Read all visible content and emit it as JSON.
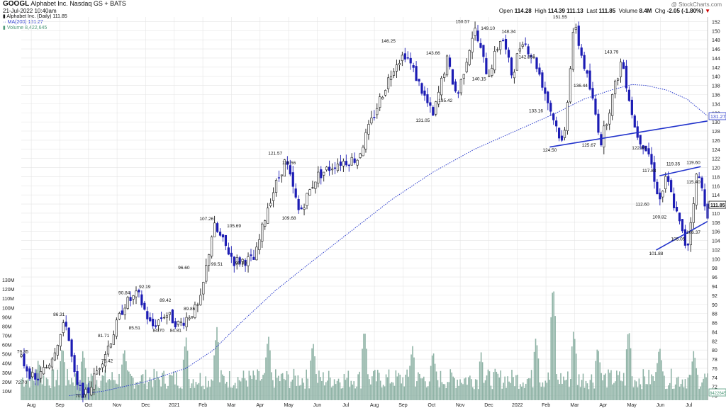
{
  "header": {
    "ticker": "GOOGL",
    "company": "Alphabet Inc.",
    "exchange": "Nasdaq GS + BATS",
    "date": "21-Jul-2022 10:40am",
    "watermark": "@ StockCharts.com",
    "open_label": "Open",
    "open": "114.28",
    "high_label": "High",
    "high": "114.39",
    "low": "111.13",
    "last_label": "Last",
    "last": "111.85",
    "volume_label": "Volume",
    "volume": "8.4M",
    "chg_label": "Chg",
    "chg": "-2.05 (-1.80%)"
  },
  "legend": [
    {
      "text": "Alphabet Inc. (Daily) 111.85",
      "color": "#111111"
    },
    {
      "text": "MA(200) 131.27",
      "color": "#2b3ccc"
    },
    {
      "text": "Volume 8,422,645",
      "color": "#4f9a7a"
    }
  ],
  "colors": {
    "up": "#1a1a1a",
    "down": "#1c1cb4",
    "ma": "#2b3ccc",
    "trend": "#2233cc",
    "volume": "#8fb3a6",
    "grid": "#e5e5e5"
  },
  "chart_data": {
    "type": "candlestick",
    "x_labels": [
      "Aug",
      "Sep",
      "Oct",
      "Nov",
      "Dec",
      "2021",
      "Feb",
      "Mar",
      "Apr",
      "May",
      "Jun",
      "Jul",
      "Aug",
      "Sep",
      "Oct",
      "Nov",
      "Dec",
      "2022",
      "Feb",
      "Mar",
      "Apr",
      "May",
      "Jun",
      "Jul"
    ],
    "y_price_ticks": [
      70,
      72,
      74,
      76,
      78,
      80,
      82,
      84,
      86,
      88,
      90,
      92,
      94,
      96,
      98,
      100,
      102,
      104,
      106,
      108,
      110,
      112,
      114,
      116,
      118,
      120,
      122,
      124,
      126,
      128,
      130,
      132,
      134,
      136,
      138,
      140,
      142,
      144,
      146,
      148,
      150,
      152
    ],
    "y_volume_ticks": [
      "10M",
      "20M",
      "30M",
      "40M",
      "50M",
      "60M",
      "70M",
      "80M",
      "90M",
      "100M",
      "110M",
      "120M",
      "130M"
    ],
    "ylim_price": [
      69,
      153
    ],
    "last_price_tag": "111.85",
    "ma_tag": "131.27",
    "volume_tag": "8422645",
    "price_path": [
      [
        0,
        78
      ],
      [
        0.02,
        73
      ],
      [
        0.04,
        77
      ],
      [
        0.065,
        86.3
      ],
      [
        0.08,
        72
      ],
      [
        0.095,
        70.1
      ],
      [
        0.115,
        77
      ],
      [
        0.13,
        82
      ],
      [
        0.15,
        90
      ],
      [
        0.17,
        92.2
      ],
      [
        0.19,
        85
      ],
      [
        0.21,
        88
      ],
      [
        0.23,
        85.5
      ],
      [
        0.26,
        89.8
      ],
      [
        0.28,
        107.3
      ],
      [
        0.31,
        99.5
      ],
      [
        0.34,
        99.8
      ],
      [
        0.36,
        112
      ],
      [
        0.385,
        121.6
      ],
      [
        0.405,
        110
      ],
      [
        0.43,
        118
      ],
      [
        0.46,
        121
      ],
      [
        0.49,
        122
      ],
      [
        0.52,
        134
      ],
      [
        0.545,
        143
      ],
      [
        0.56,
        145
      ],
      [
        0.575,
        140
      ],
      [
        0.6,
        131.1
      ],
      [
        0.62,
        143.7
      ],
      [
        0.635,
        135.4
      ],
      [
        0.66,
        150.6
      ],
      [
        0.68,
        140
      ],
      [
        0.7,
        149.1
      ],
      [
        0.715,
        140.2
      ],
      [
        0.73,
        148.3
      ],
      [
        0.75,
        142.9
      ],
      [
        0.77,
        133.2
      ],
      [
        0.79,
        124.5
      ],
      [
        0.805,
        151.6
      ],
      [
        0.83,
        136.4
      ],
      [
        0.845,
        125.7
      ],
      [
        0.875,
        143.8
      ],
      [
        0.895,
        128
      ],
      [
        0.915,
        122.8
      ],
      [
        0.93,
        112.6
      ],
      [
        0.94,
        117.8
      ],
      [
        0.955,
        109.8
      ],
      [
        0.97,
        101.9
      ],
      [
        0.985,
        119.4
      ],
      [
        1.0,
        110
      ]
    ],
    "ma200_path": [
      [
        0.07,
        70
      ],
      [
        0.12,
        71
      ],
      [
        0.18,
        73
      ],
      [
        0.24,
        76
      ],
      [
        0.28,
        80
      ],
      [
        0.32,
        86
      ],
      [
        0.37,
        93
      ],
      [
        0.42,
        99
      ],
      [
        0.48,
        106
      ],
      [
        0.54,
        113
      ],
      [
        0.6,
        119
      ],
      [
        0.66,
        124
      ],
      [
        0.72,
        128
      ],
      [
        0.78,
        132
      ],
      [
        0.82,
        135
      ],
      [
        0.86,
        137
      ],
      [
        0.89,
        138.2
      ],
      [
        0.91,
        138
      ],
      [
        0.94,
        137
      ],
      [
        0.97,
        135
      ],
      [
        1.0,
        131.3
      ]
    ],
    "annotations": [
      {
        "label": "79.35",
        "x": 0.002,
        "y": 79.3
      },
      {
        "label": "72.70",
        "x": 0.0,
        "y": 72.6
      },
      {
        "label": "86.31",
        "x": 0.055,
        "y": 87.5
      },
      {
        "label": "70.11",
        "x": 0.087,
        "y": 69.6
      },
      {
        "label": "81.71",
        "x": 0.12,
        "y": 82.8
      },
      {
        "label": "75.42",
        "x": 0.125,
        "y": 77.3
      },
      {
        "label": "90.84",
        "x": 0.15,
        "y": 92.2
      },
      {
        "label": "85.51",
        "x": 0.165,
        "y": 84.5
      },
      {
        "label": "92.19",
        "x": 0.18,
        "y": 93.5
      },
      {
        "label": "89.42",
        "x": 0.21,
        "y": 90.6
      },
      {
        "label": "84.70",
        "x": 0.2,
        "y": 84.0
      },
      {
        "label": "84.81",
        "x": 0.225,
        "y": 84.0
      },
      {
        "label": "89.86",
        "x": 0.245,
        "y": 88.7
      },
      {
        "label": "96.60",
        "x": 0.237,
        "y": 97.7
      },
      {
        "label": "107.26",
        "x": 0.27,
        "y": 108.4
      },
      {
        "label": "105.69",
        "x": 0.31,
        "y": 106.9
      },
      {
        "label": "99.51",
        "x": 0.285,
        "y": 98.5
      },
      {
        "label": "99.80",
        "x": 0.32,
        "y": 98.7
      },
      {
        "label": "121.57",
        "x": 0.37,
        "y": 122.8
      },
      {
        "label": "119.56",
        "x": 0.39,
        "y": 120.7
      },
      {
        "label": "109.68",
        "x": 0.39,
        "y": 108.6
      },
      {
        "label": "146.25",
        "x": 0.535,
        "y": 147.4
      },
      {
        "label": "143.66",
        "x": 0.6,
        "y": 144.8
      },
      {
        "label": "131.05",
        "x": 0.585,
        "y": 130.0
      },
      {
        "label": "135.42",
        "x": 0.618,
        "y": 134.4
      },
      {
        "label": "150.57",
        "x": 0.643,
        "y": 151.7
      },
      {
        "label": "149.10",
        "x": 0.68,
        "y": 150.2
      },
      {
        "label": "148.34",
        "x": 0.71,
        "y": 149.5
      },
      {
        "label": "140.15",
        "x": 0.667,
        "y": 139.1
      },
      {
        "label": "142.85",
        "x": 0.735,
        "y": 143.9
      },
      {
        "label": "133.16",
        "x": 0.75,
        "y": 132.1
      },
      {
        "label": "124.50",
        "x": 0.77,
        "y": 123.5
      },
      {
        "label": "151.55",
        "x": 0.785,
        "y": 152.7
      },
      {
        "label": "136.44",
        "x": 0.815,
        "y": 137.6
      },
      {
        "label": "125.67",
        "x": 0.827,
        "y": 124.6
      },
      {
        "label": "143.79",
        "x": 0.86,
        "y": 145.0
      },
      {
        "label": "122.85",
        "x": 0.9,
        "y": 124.0
      },
      {
        "label": "117.88",
        "x": 0.915,
        "y": 119.0
      },
      {
        "label": "112.60",
        "x": 0.905,
        "y": 111.6
      },
      {
        "label": "109.82",
        "x": 0.93,
        "y": 108.8
      },
      {
        "label": "119.35",
        "x": 0.95,
        "y": 120.5
      },
      {
        "label": "119.60",
        "x": 0.985,
        "y": 120.8
      },
      {
        "label": "101.88",
        "x": 0.925,
        "y": 100.8
      },
      {
        "label": "105.05",
        "x": 0.957,
        "y": 104.0
      },
      {
        "label": "106.37",
        "x": 0.992,
        "y": 105.5
      },
      {
        "label": "115.40",
        "x": 1.0,
        "y": 116.5
      }
    ],
    "trendlines": [
      {
        "from": [
          0.77,
          124.5
        ],
        "to": [
          1.0,
          130.2
        ]
      },
      {
        "from": [
          0.93,
          118.2
        ],
        "to": [
          0.99,
          120.2
        ]
      },
      {
        "from": [
          0.925,
          101.9
        ],
        "to": [
          1.0,
          108.2
        ]
      }
    ],
    "volume_spikes": [
      [
        0.025,
        45
      ],
      [
        0.06,
        60
      ],
      [
        0.09,
        55
      ],
      [
        0.15,
        58
      ],
      [
        0.24,
        70
      ],
      [
        0.285,
        80
      ],
      [
        0.36,
        72
      ],
      [
        0.425,
        65
      ],
      [
        0.5,
        80
      ],
      [
        0.57,
        60
      ],
      [
        0.6,
        55
      ],
      [
        0.67,
        52
      ],
      [
        0.75,
        70
      ],
      [
        0.775,
        130
      ],
      [
        0.805,
        78
      ],
      [
        0.84,
        60
      ],
      [
        0.885,
        80
      ],
      [
        0.93,
        60
      ],
      [
        0.98,
        55
      ]
    ]
  }
}
